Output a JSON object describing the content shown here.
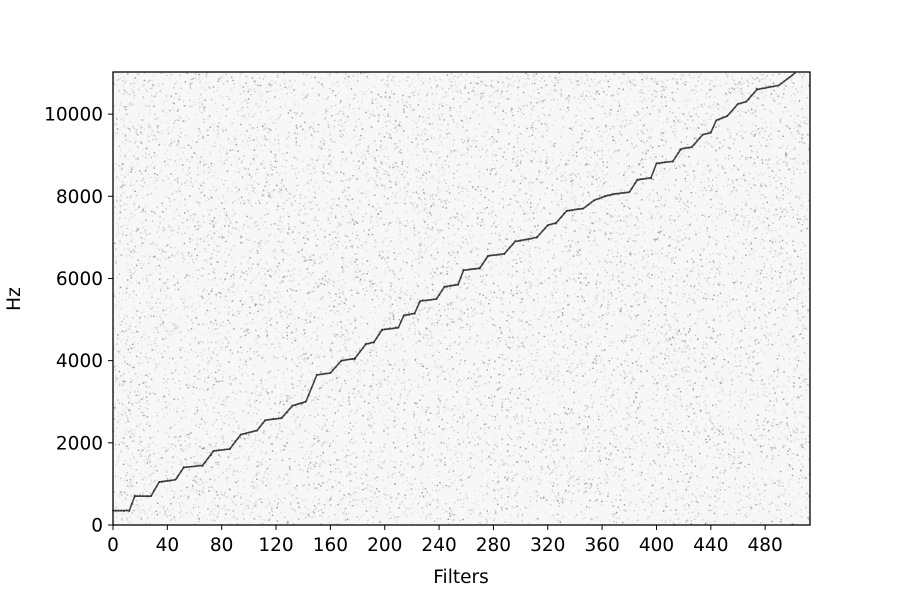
{
  "chart_data": {
    "type": "heatmap",
    "title": "",
    "xlabel": "Filters",
    "ylabel": "Hz",
    "xlim": [
      0,
      513
    ],
    "ylim": [
      0,
      11025
    ],
    "x_ticks": [
      0,
      40,
      80,
      120,
      160,
      200,
      240,
      280,
      320,
      360,
      400,
      440,
      480
    ],
    "x_tick_labels": [
      "0",
      "40",
      "80",
      "120",
      "160",
      "200",
      "240",
      "280",
      "320",
      "360",
      "400",
      "440",
      "480"
    ],
    "y_ticks": [
      0,
      2000,
      4000,
      6000,
      8000,
      10000
    ],
    "y_tick_labels": [
      "0",
      "2000",
      "4000",
      "6000",
      "8000",
      "10000"
    ],
    "colormap": "gray_r",
    "grid": false,
    "background_noise": "light gray random texture",
    "peak_line": {
      "description": "staircase ridge of peak response frequency per filter index",
      "points": [
        [
          0,
          350
        ],
        [
          12,
          350
        ],
        [
          16,
          700
        ],
        [
          28,
          700
        ],
        [
          34,
          1050
        ],
        [
          46,
          1100
        ],
        [
          52,
          1400
        ],
        [
          66,
          1450
        ],
        [
          74,
          1800
        ],
        [
          86,
          1850
        ],
        [
          94,
          2200
        ],
        [
          106,
          2300
        ],
        [
          112,
          2550
        ],
        [
          124,
          2600
        ],
        [
          132,
          2900
        ],
        [
          142,
          3000
        ],
        [
          150,
          3650
        ],
        [
          160,
          3700
        ],
        [
          168,
          4000
        ],
        [
          178,
          4050
        ],
        [
          186,
          4400
        ],
        [
          192,
          4450
        ],
        [
          198,
          4750
        ],
        [
          210,
          4800
        ],
        [
          214,
          5100
        ],
        [
          222,
          5150
        ],
        [
          226,
          5450
        ],
        [
          238,
          5500
        ],
        [
          244,
          5800
        ],
        [
          254,
          5850
        ],
        [
          258,
          6200
        ],
        [
          270,
          6250
        ],
        [
          276,
          6550
        ],
        [
          288,
          6600
        ],
        [
          296,
          6900
        ],
        [
          312,
          7000
        ],
        [
          320,
          7300
        ],
        [
          326,
          7350
        ],
        [
          334,
          7650
        ],
        [
          346,
          7700
        ],
        [
          354,
          7900
        ],
        [
          362,
          8000
        ],
        [
          368,
          8050
        ],
        [
          380,
          8100
        ],
        [
          386,
          8400
        ],
        [
          396,
          8450
        ],
        [
          400,
          8800
        ],
        [
          412,
          8850
        ],
        [
          418,
          9150
        ],
        [
          426,
          9200
        ],
        [
          434,
          9500
        ],
        [
          440,
          9550
        ],
        [
          444,
          9850
        ],
        [
          452,
          9950
        ],
        [
          460,
          10250
        ],
        [
          466,
          10300
        ],
        [
          474,
          10600
        ],
        [
          490,
          10700
        ],
        [
          502,
          11000
        ]
      ]
    }
  },
  "colors": {
    "axis": "#000000",
    "peak": "#1a1a1a",
    "background": "#f7f7f7"
  }
}
